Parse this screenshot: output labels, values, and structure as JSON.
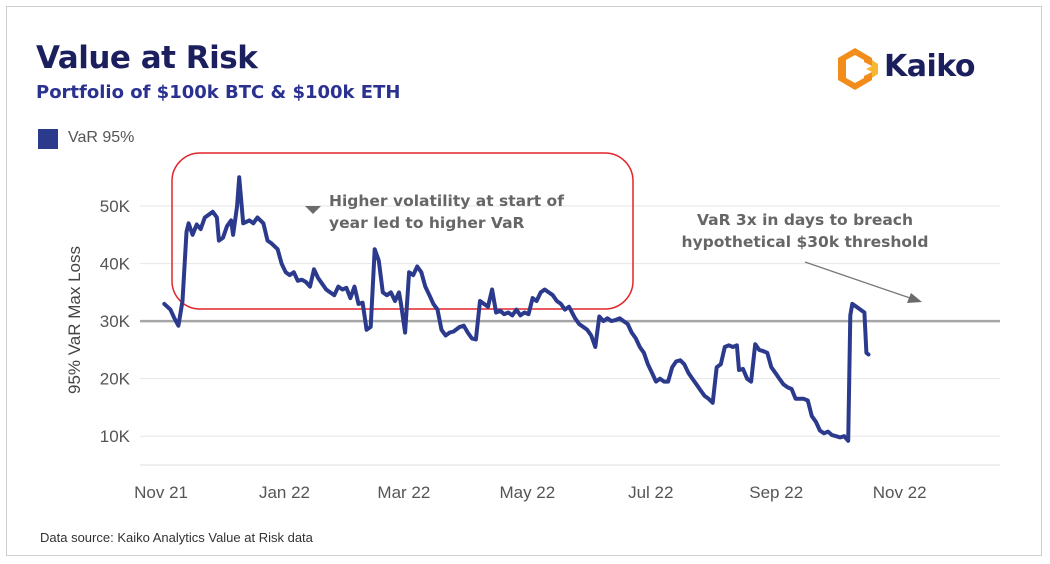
{
  "header": {
    "title": "Value at Risk",
    "subtitle": "Portfolio of $100k BTC & $100k ETH",
    "logo_text": "Kaiko"
  },
  "footer": {
    "source": "Data source: Kaiko Analytics Value at Risk data"
  },
  "colors": {
    "title": "#1c1f5e",
    "subtitle": "#2b3190",
    "series": "#2b3a8c",
    "threshold": "#a6a6a6",
    "highlight_box": "#e0262b",
    "logo_orange": "#f28c1a",
    "logo_yellow": "#f7b733"
  },
  "chart_data": {
    "type": "line",
    "ylabel": "95% VaR Max Loss",
    "ylim": [
      5000,
      58000
    ],
    "yticks": [
      10000,
      20000,
      30000,
      40000,
      50000
    ],
    "ytick_labels": [
      "10K",
      "20K",
      "30K",
      "40K",
      "50K"
    ],
    "xlim": [
      "2021-10-29",
      "2022-12-28"
    ],
    "xticks": [
      "2021-11-01",
      "2022-01-01",
      "2022-03-01",
      "2022-05-01",
      "2022-07-01",
      "2022-09-01",
      "2022-11-01"
    ],
    "xtick_labels": [
      "Nov 21",
      "Jan 22",
      "Mar 22",
      "May 22",
      "Jul 22",
      "Sep 22",
      "Nov 22"
    ],
    "grid": "horizontal",
    "legend": "top-left",
    "threshold": 30000,
    "series": [
      {
        "name": "VaR 95%",
        "points": [
          [
            "2021-11-10",
            33000
          ],
          [
            "2021-11-13",
            32000
          ],
          [
            "2021-11-15",
            30500
          ],
          [
            "2021-11-17",
            29200
          ],
          [
            "2021-11-19",
            33500
          ],
          [
            "2021-11-21",
            45500
          ],
          [
            "2021-11-22",
            47000
          ],
          [
            "2021-11-24",
            45000
          ],
          [
            "2021-11-26",
            46800
          ],
          [
            "2021-11-28",
            46000
          ],
          [
            "2021-11-30",
            48000
          ],
          [
            "2021-12-02",
            48500
          ],
          [
            "2021-12-04",
            49000
          ],
          [
            "2021-12-06",
            48000
          ],
          [
            "2021-12-07",
            44000
          ],
          [
            "2021-12-09",
            44500
          ],
          [
            "2021-12-11",
            46500
          ],
          [
            "2021-12-13",
            47500
          ],
          [
            "2021-12-14",
            45000
          ],
          [
            "2021-12-16",
            50000
          ],
          [
            "2021-12-17",
            55000
          ],
          [
            "2021-12-19",
            47000
          ],
          [
            "2021-12-22",
            47500
          ],
          [
            "2021-12-24",
            47000
          ],
          [
            "2021-12-26",
            48000
          ],
          [
            "2021-12-29",
            47000
          ],
          [
            "2021-12-31",
            44000
          ],
          [
            "2022-01-02",
            43500
          ],
          [
            "2022-01-05",
            42500
          ],
          [
            "2022-01-07",
            40000
          ],
          [
            "2022-01-09",
            38500
          ],
          [
            "2022-01-11",
            38000
          ],
          [
            "2022-01-13",
            38500
          ],
          [
            "2022-01-15",
            37000
          ],
          [
            "2022-01-17",
            37200
          ],
          [
            "2022-01-19",
            36800
          ],
          [
            "2022-01-21",
            36000
          ],
          [
            "2022-01-23",
            39000
          ],
          [
            "2022-01-25",
            37500
          ],
          [
            "2022-01-27",
            36500
          ],
          [
            "2022-01-29",
            35500
          ],
          [
            "2022-01-31",
            35000
          ],
          [
            "2022-02-02",
            34500
          ],
          [
            "2022-02-04",
            36000
          ],
          [
            "2022-02-06",
            35500
          ],
          [
            "2022-02-08",
            35800
          ],
          [
            "2022-02-10",
            34000
          ],
          [
            "2022-02-12",
            36000
          ],
          [
            "2022-02-14",
            33000
          ],
          [
            "2022-02-16",
            33200
          ],
          [
            "2022-02-18",
            28500
          ],
          [
            "2022-02-20",
            29000
          ],
          [
            "2022-02-22",
            42500
          ],
          [
            "2022-02-24",
            40500
          ],
          [
            "2022-02-26",
            35000
          ],
          [
            "2022-02-28",
            34500
          ],
          [
            "2022-03-02",
            35000
          ],
          [
            "2022-03-04",
            33500
          ],
          [
            "2022-03-06",
            35000
          ],
          [
            "2022-03-07",
            33000
          ],
          [
            "2022-03-09",
            28000
          ],
          [
            "2022-03-11",
            38500
          ],
          [
            "2022-03-13",
            38000
          ],
          [
            "2022-03-15",
            39500
          ],
          [
            "2022-03-17",
            38500
          ],
          [
            "2022-03-19",
            36000
          ],
          [
            "2022-03-21",
            34500
          ],
          [
            "2022-03-23",
            33000
          ],
          [
            "2022-03-25",
            32000
          ],
          [
            "2022-03-27",
            28500
          ],
          [
            "2022-03-29",
            27500
          ],
          [
            "2022-03-31",
            28000
          ],
          [
            "2022-04-02",
            28200
          ],
          [
            "2022-04-05",
            29000
          ],
          [
            "2022-04-07",
            29200
          ],
          [
            "2022-04-09",
            28000
          ],
          [
            "2022-04-11",
            27000
          ],
          [
            "2022-04-13",
            26800
          ],
          [
            "2022-04-15",
            33500
          ],
          [
            "2022-04-17",
            33000
          ],
          [
            "2022-04-19",
            32500
          ],
          [
            "2022-04-21",
            35500
          ],
          [
            "2022-04-23",
            31500
          ],
          [
            "2022-04-25",
            31800
          ],
          [
            "2022-04-27",
            31200
          ],
          [
            "2022-04-29",
            31500
          ],
          [
            "2022-05-01",
            31000
          ],
          [
            "2022-05-03",
            32000
          ],
          [
            "2022-05-05",
            31000
          ],
          [
            "2022-05-07",
            31500
          ],
          [
            "2022-05-09",
            31200
          ],
          [
            "2022-05-11",
            34000
          ],
          [
            "2022-05-13",
            33500
          ],
          [
            "2022-05-15",
            35000
          ],
          [
            "2022-05-17",
            35500
          ],
          [
            "2022-05-19",
            35000
          ],
          [
            "2022-05-21",
            34500
          ],
          [
            "2022-05-23",
            33500
          ],
          [
            "2022-05-25",
            33000
          ],
          [
            "2022-05-27",
            32000
          ],
          [
            "2022-05-29",
            32500
          ],
          [
            "2022-06-01",
            30500
          ],
          [
            "2022-06-03",
            29500
          ],
          [
            "2022-06-05",
            29000
          ],
          [
            "2022-06-07",
            28500
          ],
          [
            "2022-06-09",
            27500
          ],
          [
            "2022-06-11",
            25500
          ],
          [
            "2022-06-13",
            30800
          ],
          [
            "2022-06-15",
            30000
          ],
          [
            "2022-06-17",
            30500
          ],
          [
            "2022-06-19",
            30000
          ],
          [
            "2022-06-21",
            30200
          ],
          [
            "2022-06-23",
            30500
          ],
          [
            "2022-06-25",
            30000
          ],
          [
            "2022-06-27",
            29500
          ],
          [
            "2022-06-29",
            28000
          ],
          [
            "2022-07-01",
            27000
          ],
          [
            "2022-07-03",
            25500
          ],
          [
            "2022-07-05",
            24500
          ],
          [
            "2022-07-07",
            22500
          ],
          [
            "2022-07-09",
            21000
          ],
          [
            "2022-07-11",
            19500
          ],
          [
            "2022-07-13",
            20000
          ],
          [
            "2022-07-15",
            19500
          ],
          [
            "2022-07-17",
            19500
          ],
          [
            "2022-07-19",
            22000
          ],
          [
            "2022-07-21",
            23000
          ],
          [
            "2022-07-23",
            23200
          ],
          [
            "2022-07-25",
            22500
          ],
          [
            "2022-07-27",
            21000
          ],
          [
            "2022-07-29",
            20000
          ],
          [
            "2022-07-31",
            19000
          ],
          [
            "2022-08-02",
            18000
          ],
          [
            "2022-08-04",
            17000
          ],
          [
            "2022-08-06",
            16500
          ],
          [
            "2022-08-08",
            15800
          ],
          [
            "2022-08-10",
            22000
          ],
          [
            "2022-08-12",
            22500
          ],
          [
            "2022-08-14",
            25500
          ],
          [
            "2022-08-16",
            25800
          ],
          [
            "2022-08-18",
            25500
          ],
          [
            "2022-08-20",
            25800
          ],
          [
            "2022-08-21",
            21500
          ],
          [
            "2022-08-23",
            21700
          ],
          [
            "2022-08-25",
            20000
          ],
          [
            "2022-08-27",
            19500
          ],
          [
            "2022-08-29",
            26000
          ],
          [
            "2022-08-31",
            25000
          ],
          [
            "2022-09-02",
            24800
          ],
          [
            "2022-09-04",
            24500
          ],
          [
            "2022-09-06",
            22000
          ],
          [
            "2022-09-08",
            21000
          ],
          [
            "2022-09-10",
            20000
          ],
          [
            "2022-09-12",
            19000
          ],
          [
            "2022-09-14",
            18500
          ],
          [
            "2022-09-16",
            18200
          ],
          [
            "2022-09-18",
            16500
          ],
          [
            "2022-09-20",
            16500
          ],
          [
            "2022-09-22",
            16500
          ],
          [
            "2022-09-24",
            16200
          ],
          [
            "2022-09-26",
            13500
          ],
          [
            "2022-09-28",
            12500
          ],
          [
            "2022-09-30",
            11000
          ],
          [
            "2022-10-02",
            10500
          ],
          [
            "2022-10-04",
            10800
          ],
          [
            "2022-10-06",
            10200
          ],
          [
            "2022-10-08",
            10000
          ],
          [
            "2022-10-10",
            9800
          ],
          [
            "2022-10-12",
            10000
          ],
          [
            "2022-10-14",
            9200
          ],
          [
            "2022-10-15",
            31000
          ],
          [
            "2022-10-16",
            33000
          ],
          [
            "2022-10-18",
            32500
          ],
          [
            "2022-10-20",
            32000
          ],
          [
            "2022-10-22",
            31500
          ],
          [
            "2022-10-23",
            24500
          ],
          [
            "2022-10-24",
            24200
          ]
        ]
      }
    ],
    "annotations": [
      {
        "text_lines": [
          "Higher volatility at start of",
          "year led to higher VaR"
        ]
      },
      {
        "text_lines": [
          "VaR 3x in days to breach",
          "hypothetical $30k threshold"
        ]
      }
    ]
  }
}
